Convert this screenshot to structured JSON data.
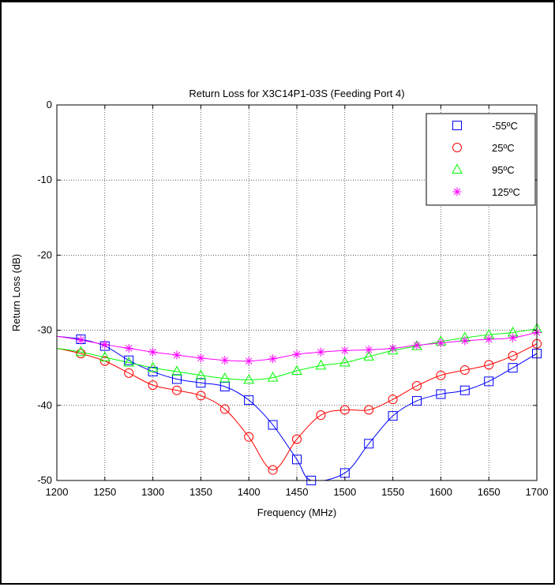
{
  "chart_data": {
    "type": "line",
    "title": "Return Loss for X3C14P1-03S (Feeding Port 4)",
    "xlabel": "Frequency (MHz)",
    "ylabel": "Return Loss (dB)",
    "xlim": [
      1200,
      1700
    ],
    "ylim": [
      -50,
      0
    ],
    "xticks": [
      1200,
      1250,
      1300,
      1350,
      1400,
      1450,
      1500,
      1550,
      1600,
      1650,
      1700
    ],
    "yticks": [
      0,
      -10,
      -20,
      -30,
      -40,
      -50
    ],
    "grid": true,
    "legend_position": "top-right",
    "series": [
      {
        "name": "-55ºC",
        "color": "#0000ff",
        "marker": "square",
        "x": [
          1200,
          1225,
          1250,
          1275,
          1300,
          1325,
          1350,
          1375,
          1400,
          1425,
          1450,
          1465,
          1500,
          1525,
          1550,
          1575,
          1600,
          1625,
          1650,
          1675,
          1700
        ],
        "y": [
          -30.8,
          -31.2,
          -32.1,
          -34.0,
          -35.5,
          -36.5,
          -37.0,
          -37.5,
          -39.3,
          -42.6,
          -47.2,
          -50.0,
          -49.0,
          -45.1,
          -41.4,
          -39.4,
          -38.5,
          -38.0,
          -36.8,
          -35.0,
          -33.1
        ]
      },
      {
        "name": "25ºC",
        "color": "#ff0000",
        "marker": "circle",
        "x": [
          1200,
          1225,
          1250,
          1275,
          1300,
          1325,
          1350,
          1375,
          1400,
          1425,
          1450,
          1475,
          1500,
          1525,
          1550,
          1575,
          1600,
          1625,
          1650,
          1675,
          1700
        ],
        "y": [
          -32.4,
          -33.1,
          -34.1,
          -35.7,
          -37.3,
          -38.0,
          -38.7,
          -40.5,
          -44.2,
          -48.6,
          -44.5,
          -41.3,
          -40.6,
          -40.6,
          -39.2,
          -37.4,
          -36.0,
          -35.3,
          -34.6,
          -33.4,
          -31.8
        ]
      },
      {
        "name": "95ºC",
        "color": "#00ff00",
        "marker": "triangle",
        "x": [
          1200,
          1225,
          1250,
          1275,
          1300,
          1325,
          1350,
          1375,
          1400,
          1425,
          1450,
          1475,
          1500,
          1525,
          1550,
          1575,
          1600,
          1625,
          1650,
          1675,
          1700
        ],
        "y": [
          -32.4,
          -32.9,
          -33.6,
          -34.3,
          -35.0,
          -35.5,
          -36.0,
          -36.4,
          -36.6,
          -36.3,
          -35.4,
          -34.7,
          -34.3,
          -33.5,
          -32.7,
          -32.1,
          -31.5,
          -31.0,
          -30.6,
          -30.3,
          -29.8
        ]
      },
      {
        "name": "125ºC",
        "color": "#ff00ff",
        "marker": "asterisk",
        "x": [
          1200,
          1225,
          1250,
          1275,
          1300,
          1325,
          1350,
          1375,
          1400,
          1425,
          1450,
          1475,
          1500,
          1525,
          1550,
          1575,
          1600,
          1625,
          1650,
          1675,
          1700
        ],
        "y": [
          -30.8,
          -31.3,
          -31.9,
          -32.4,
          -32.9,
          -33.3,
          -33.7,
          -34.0,
          -34.1,
          -33.8,
          -33.2,
          -32.9,
          -32.7,
          -32.6,
          -32.4,
          -32.0,
          -31.7,
          -31.4,
          -31.2,
          -31.0,
          -30.3
        ]
      }
    ]
  }
}
